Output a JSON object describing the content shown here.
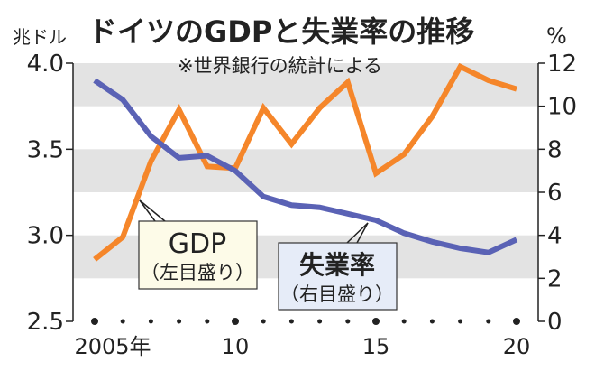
{
  "chart_data": [
    {
      "type": "line",
      "title": "ドイツのGDPと失業率の推移",
      "subtitle": "※世界銀行の統計による",
      "x": [
        2005,
        2006,
        2007,
        2008,
        2009,
        2010,
        2011,
        2012,
        2013,
        2014,
        2015,
        2016,
        2017,
        2018,
        2019,
        2020
      ],
      "x_tick_labels": [
        {
          "year": 2005,
          "label": "2005年"
        },
        {
          "year": 2010,
          "label": "10"
        },
        {
          "year": 2015,
          "label": "15"
        },
        {
          "year": 2020,
          "label": "20"
        }
      ],
      "left_axis": {
        "unit": "兆ドル",
        "ylim": [
          2.5,
          4.0
        ],
        "ticks": [
          "2.5",
          "3.0",
          "3.5",
          "4.0"
        ]
      },
      "right_axis": {
        "unit": "%",
        "ylim": [
          0,
          12
        ],
        "ticks": [
          "0",
          "2",
          "4",
          "6",
          "8",
          "10",
          "12"
        ]
      },
      "grid": "alternating gray bands",
      "series": [
        {
          "name": "GDP",
          "note": "（左目盛り）",
          "axis": "left",
          "color": "#f5862a",
          "values": [
            2.86,
            2.99,
            3.43,
            3.73,
            3.4,
            3.39,
            3.74,
            3.53,
            3.74,
            3.89,
            3.36,
            3.47,
            3.69,
            3.98,
            3.9,
            3.85
          ]
        },
        {
          "name": "失業率",
          "note": "（右目盛り）",
          "axis": "right",
          "color": "#5a62b5",
          "values": [
            11.2,
            10.3,
            8.6,
            7.6,
            7.7,
            7.0,
            5.8,
            5.4,
            5.3,
            5.0,
            4.7,
            4.1,
            3.7,
            3.4,
            3.2,
            3.8
          ]
        }
      ]
    }
  ]
}
